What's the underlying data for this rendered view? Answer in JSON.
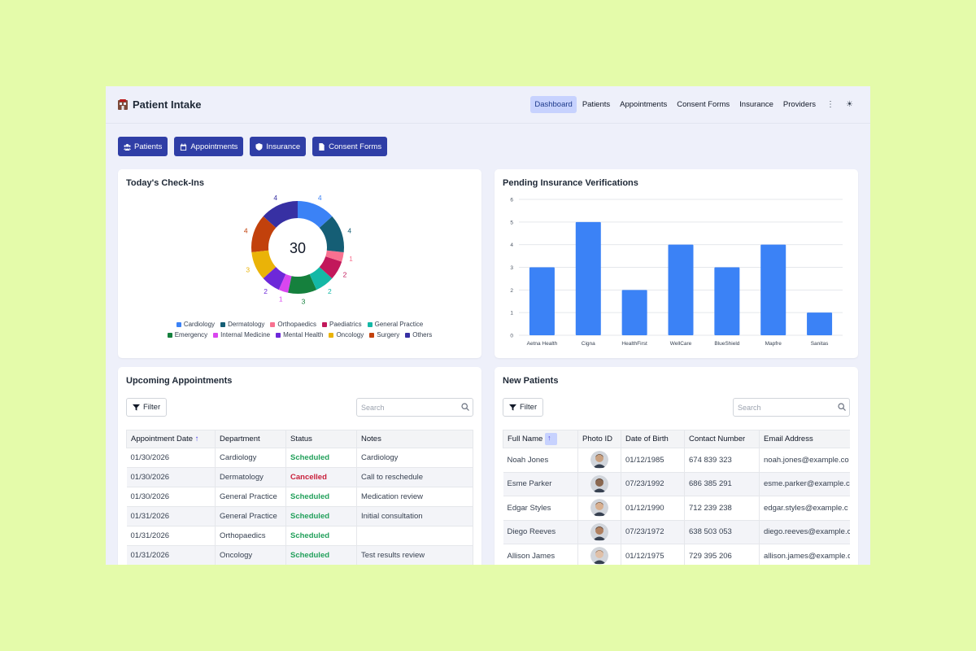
{
  "app": {
    "title": "Patient Intake"
  },
  "nav": {
    "items": [
      {
        "label": "Dashboard",
        "active": true
      },
      {
        "label": "Patients",
        "active": false
      },
      {
        "label": "Appointments",
        "active": false
      },
      {
        "label": "Consent Forms",
        "active": false
      },
      {
        "label": "Insurance",
        "active": false
      },
      {
        "label": "Providers",
        "active": false
      }
    ]
  },
  "quick_actions": [
    {
      "label": "Patients",
      "icon": "users-icon"
    },
    {
      "label": "Appointments",
      "icon": "calendar-icon"
    },
    {
      "label": "Insurance",
      "icon": "shield-icon"
    },
    {
      "label": "Consent Forms",
      "icon": "document-icon"
    }
  ],
  "checkins": {
    "title": "Today's Check-Ins",
    "total": "30",
    "chart_data": {
      "type": "pie",
      "categories": [
        "Cardiology",
        "Dermatology",
        "Orthopaedics",
        "Paediatrics",
        "General Practice",
        "Emergency",
        "Internal Medicine",
        "Mental Health",
        "Oncology",
        "Surgery",
        "Others"
      ],
      "values": [
        4,
        4,
        1,
        2,
        2,
        3,
        1,
        2,
        3,
        4,
        4
      ],
      "colors": [
        "#3b82f6",
        "#155e75",
        "#f87190",
        "#c2185b",
        "#14b8a6",
        "#15803d",
        "#d946ef",
        "#6d28d9",
        "#eab308",
        "#c2410c",
        "#3730a3"
      ]
    }
  },
  "pending": {
    "title": "Pending Insurance Verifications",
    "chart_data": {
      "type": "bar",
      "categories": [
        "Aetna Health",
        "Cigna",
        "HealthFirst",
        "WellCare",
        "BlueShield",
        "Mapfre",
        "Sanitas"
      ],
      "values": [
        3,
        5,
        2,
        4,
        3,
        4,
        1
      ],
      "ylim": [
        0,
        6
      ],
      "yticks": [
        "0",
        "1",
        "2",
        "3",
        "4",
        "5",
        "6"
      ],
      "color": "#3b82f6"
    }
  },
  "appointments": {
    "title": "Upcoming Appointments",
    "filter_label": "Filter",
    "search_placeholder": "Search",
    "columns": [
      "Appointment Date",
      "Department",
      "Status",
      "Notes"
    ],
    "rows": [
      {
        "date": "01/30/2026",
        "dept": "Cardiology",
        "status": "Scheduled",
        "notes": "Cardiology"
      },
      {
        "date": "01/30/2026",
        "dept": "Dermatology",
        "status": "Cancelled",
        "notes": "Call to reschedule"
      },
      {
        "date": "01/30/2026",
        "dept": "General Practice",
        "status": "Scheduled",
        "notes": "Medication review"
      },
      {
        "date": "01/31/2026",
        "dept": "General Practice",
        "status": "Scheduled",
        "notes": "Initial consultation"
      },
      {
        "date": "01/31/2026",
        "dept": "Orthopaedics",
        "status": "Scheduled",
        "notes": ""
      },
      {
        "date": "01/31/2026",
        "dept": "Oncology",
        "status": "Scheduled",
        "notes": "Test results review"
      }
    ]
  },
  "new_patients": {
    "title": "New Patients",
    "filter_label": "Filter",
    "search_placeholder": "Search",
    "columns": [
      "Full Name",
      "Photo ID",
      "Date of Birth",
      "Contact Number",
      "Email Address"
    ],
    "rows": [
      {
        "name": "Noah Jones",
        "dob": "01/12/1985",
        "phone": "674 839 323",
        "email": "noah.jones@example.co"
      },
      {
        "name": "Esme Parker",
        "dob": "07/23/1992",
        "phone": "686 385 291",
        "email": "esme.parker@example.c"
      },
      {
        "name": "Edgar Styles",
        "dob": "01/12/1990",
        "phone": "712 239 238",
        "email": "edgar.styles@example.c"
      },
      {
        "name": "Diego Reeves",
        "dob": "07/23/1972",
        "phone": "638 503 053",
        "email": "diego.reeves@example.c"
      },
      {
        "name": "Allison James",
        "dob": "01/12/1975",
        "phone": "729 395 206",
        "email": "allison.james@example.c"
      }
    ]
  }
}
